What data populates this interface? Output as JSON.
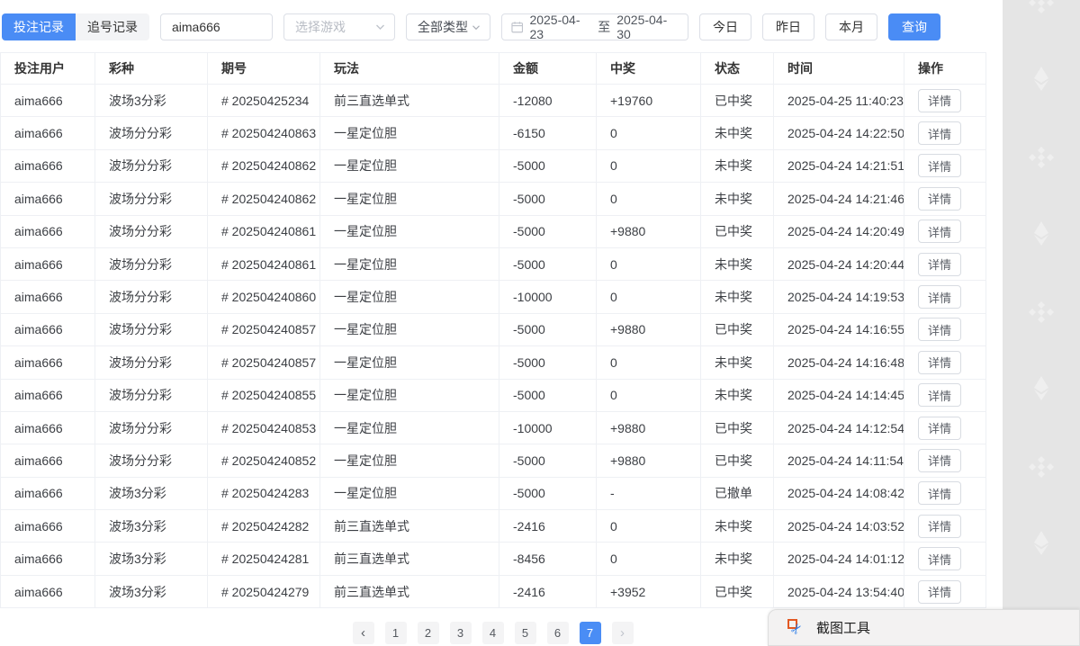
{
  "filters": {
    "tabs": [
      {
        "label": "投注记录",
        "active": true
      },
      {
        "label": "追号记录",
        "active": false
      }
    ],
    "username_input": {
      "value": "aima666"
    },
    "game_select": {
      "placeholder": "选择游戏"
    },
    "type_select": {
      "value": "全部类型"
    },
    "date_range": {
      "start": "2025-04-23",
      "separator": "至",
      "end": "2025-04-30"
    },
    "quick_buttons": [
      "今日",
      "昨日",
      "本月"
    ],
    "search_button": "查询"
  },
  "table": {
    "columns": [
      "投注用户",
      "彩种",
      "期号",
      "玩法",
      "金额",
      "中奖",
      "状态",
      "时间",
      "操作"
    ],
    "action_label": "详情",
    "rows": [
      {
        "user": "aima666",
        "lottery": "波场3分彩",
        "issue": "# 20250425234",
        "play": "前三直选单式",
        "amount": "-12080",
        "win": "+19760",
        "status": "已中奖",
        "status_type": "won",
        "time": "2025-04-25 11:40:23"
      },
      {
        "user": "aima666",
        "lottery": "波场分分彩",
        "issue": "# 202504240863",
        "play": "一星定位胆",
        "amount": "-6150",
        "win": "0",
        "status": "未中奖",
        "status_type": "lost",
        "time": "2025-04-24 14:22:50"
      },
      {
        "user": "aima666",
        "lottery": "波场分分彩",
        "issue": "# 202504240862",
        "play": "一星定位胆",
        "amount": "-5000",
        "win": "0",
        "status": "未中奖",
        "status_type": "lost",
        "time": "2025-04-24 14:21:51"
      },
      {
        "user": "aima666",
        "lottery": "波场分分彩",
        "issue": "# 202504240862",
        "play": "一星定位胆",
        "amount": "-5000",
        "win": "0",
        "status": "未中奖",
        "status_type": "lost",
        "time": "2025-04-24 14:21:46"
      },
      {
        "user": "aima666",
        "lottery": "波场分分彩",
        "issue": "# 202504240861",
        "play": "一星定位胆",
        "amount": "-5000",
        "win": "+9880",
        "status": "已中奖",
        "status_type": "won",
        "time": "2025-04-24 14:20:49"
      },
      {
        "user": "aima666",
        "lottery": "波场分分彩",
        "issue": "# 202504240861",
        "play": "一星定位胆",
        "amount": "-5000",
        "win": "0",
        "status": "未中奖",
        "status_type": "lost",
        "time": "2025-04-24 14:20:44"
      },
      {
        "user": "aima666",
        "lottery": "波场分分彩",
        "issue": "# 202504240860",
        "play": "一星定位胆",
        "amount": "-10000",
        "win": "0",
        "status": "未中奖",
        "status_type": "lost",
        "time": "2025-04-24 14:19:53"
      },
      {
        "user": "aima666",
        "lottery": "波场分分彩",
        "issue": "# 202504240857",
        "play": "一星定位胆",
        "amount": "-5000",
        "win": "+9880",
        "status": "已中奖",
        "status_type": "won",
        "time": "2025-04-24 14:16:55"
      },
      {
        "user": "aima666",
        "lottery": "波场分分彩",
        "issue": "# 202504240857",
        "play": "一星定位胆",
        "amount": "-5000",
        "win": "0",
        "status": "未中奖",
        "status_type": "lost",
        "time": "2025-04-24 14:16:48"
      },
      {
        "user": "aima666",
        "lottery": "波场分分彩",
        "issue": "# 202504240855",
        "play": "一星定位胆",
        "amount": "-5000",
        "win": "0",
        "status": "未中奖",
        "status_type": "lost",
        "time": "2025-04-24 14:14:45"
      },
      {
        "user": "aima666",
        "lottery": "波场分分彩",
        "issue": "# 202504240853",
        "play": "一星定位胆",
        "amount": "-10000",
        "win": "+9880",
        "status": "已中奖",
        "status_type": "won",
        "time": "2025-04-24 14:12:54"
      },
      {
        "user": "aima666",
        "lottery": "波场分分彩",
        "issue": "# 202504240852",
        "play": "一星定位胆",
        "amount": "-5000",
        "win": "+9880",
        "status": "已中奖",
        "status_type": "won",
        "time": "2025-04-24 14:11:54"
      },
      {
        "user": "aima666",
        "lottery": "波场3分彩",
        "issue": "# 20250424283",
        "play": "一星定位胆",
        "amount": "-5000",
        "win": "-",
        "status": "已撤单",
        "status_type": "cancelled",
        "time": "2025-04-24 14:08:42"
      },
      {
        "user": "aima666",
        "lottery": "波场3分彩",
        "issue": "# 20250424282",
        "play": "前三直选单式",
        "amount": "-2416",
        "win": "0",
        "status": "未中奖",
        "status_type": "lost",
        "time": "2025-04-24 14:03:52"
      },
      {
        "user": "aima666",
        "lottery": "波场3分彩",
        "issue": "# 20250424281",
        "play": "前三直选单式",
        "amount": "-8456",
        "win": "0",
        "status": "未中奖",
        "status_type": "lost",
        "time": "2025-04-24 14:01:12"
      },
      {
        "user": "aima666",
        "lottery": "波场3分彩",
        "issue": "# 20250424279",
        "play": "前三直选单式",
        "amount": "-2416",
        "win": "+3952",
        "status": "已中奖",
        "status_type": "won",
        "time": "2025-04-24 13:54:40"
      }
    ]
  },
  "pagination": {
    "prev": "‹",
    "pages": [
      "1",
      "2",
      "3",
      "4",
      "5",
      "6",
      "7"
    ],
    "active_page": "7",
    "next": "›"
  },
  "overlay": {
    "snip_tool_label": "截图工具"
  },
  "watermarks": [
    "binance",
    "ethereum",
    "binance",
    "ethereum",
    "binance",
    "ethereum",
    "binance",
    "ethereum",
    "binance"
  ],
  "colors": {
    "accent_blue": "#4a8cf5",
    "amount_green": "#90c973",
    "status_green": "#6fbe54",
    "status_red": "#f56c6c",
    "status_gray": "#909399",
    "strip_gray": "#e5e5e5"
  }
}
